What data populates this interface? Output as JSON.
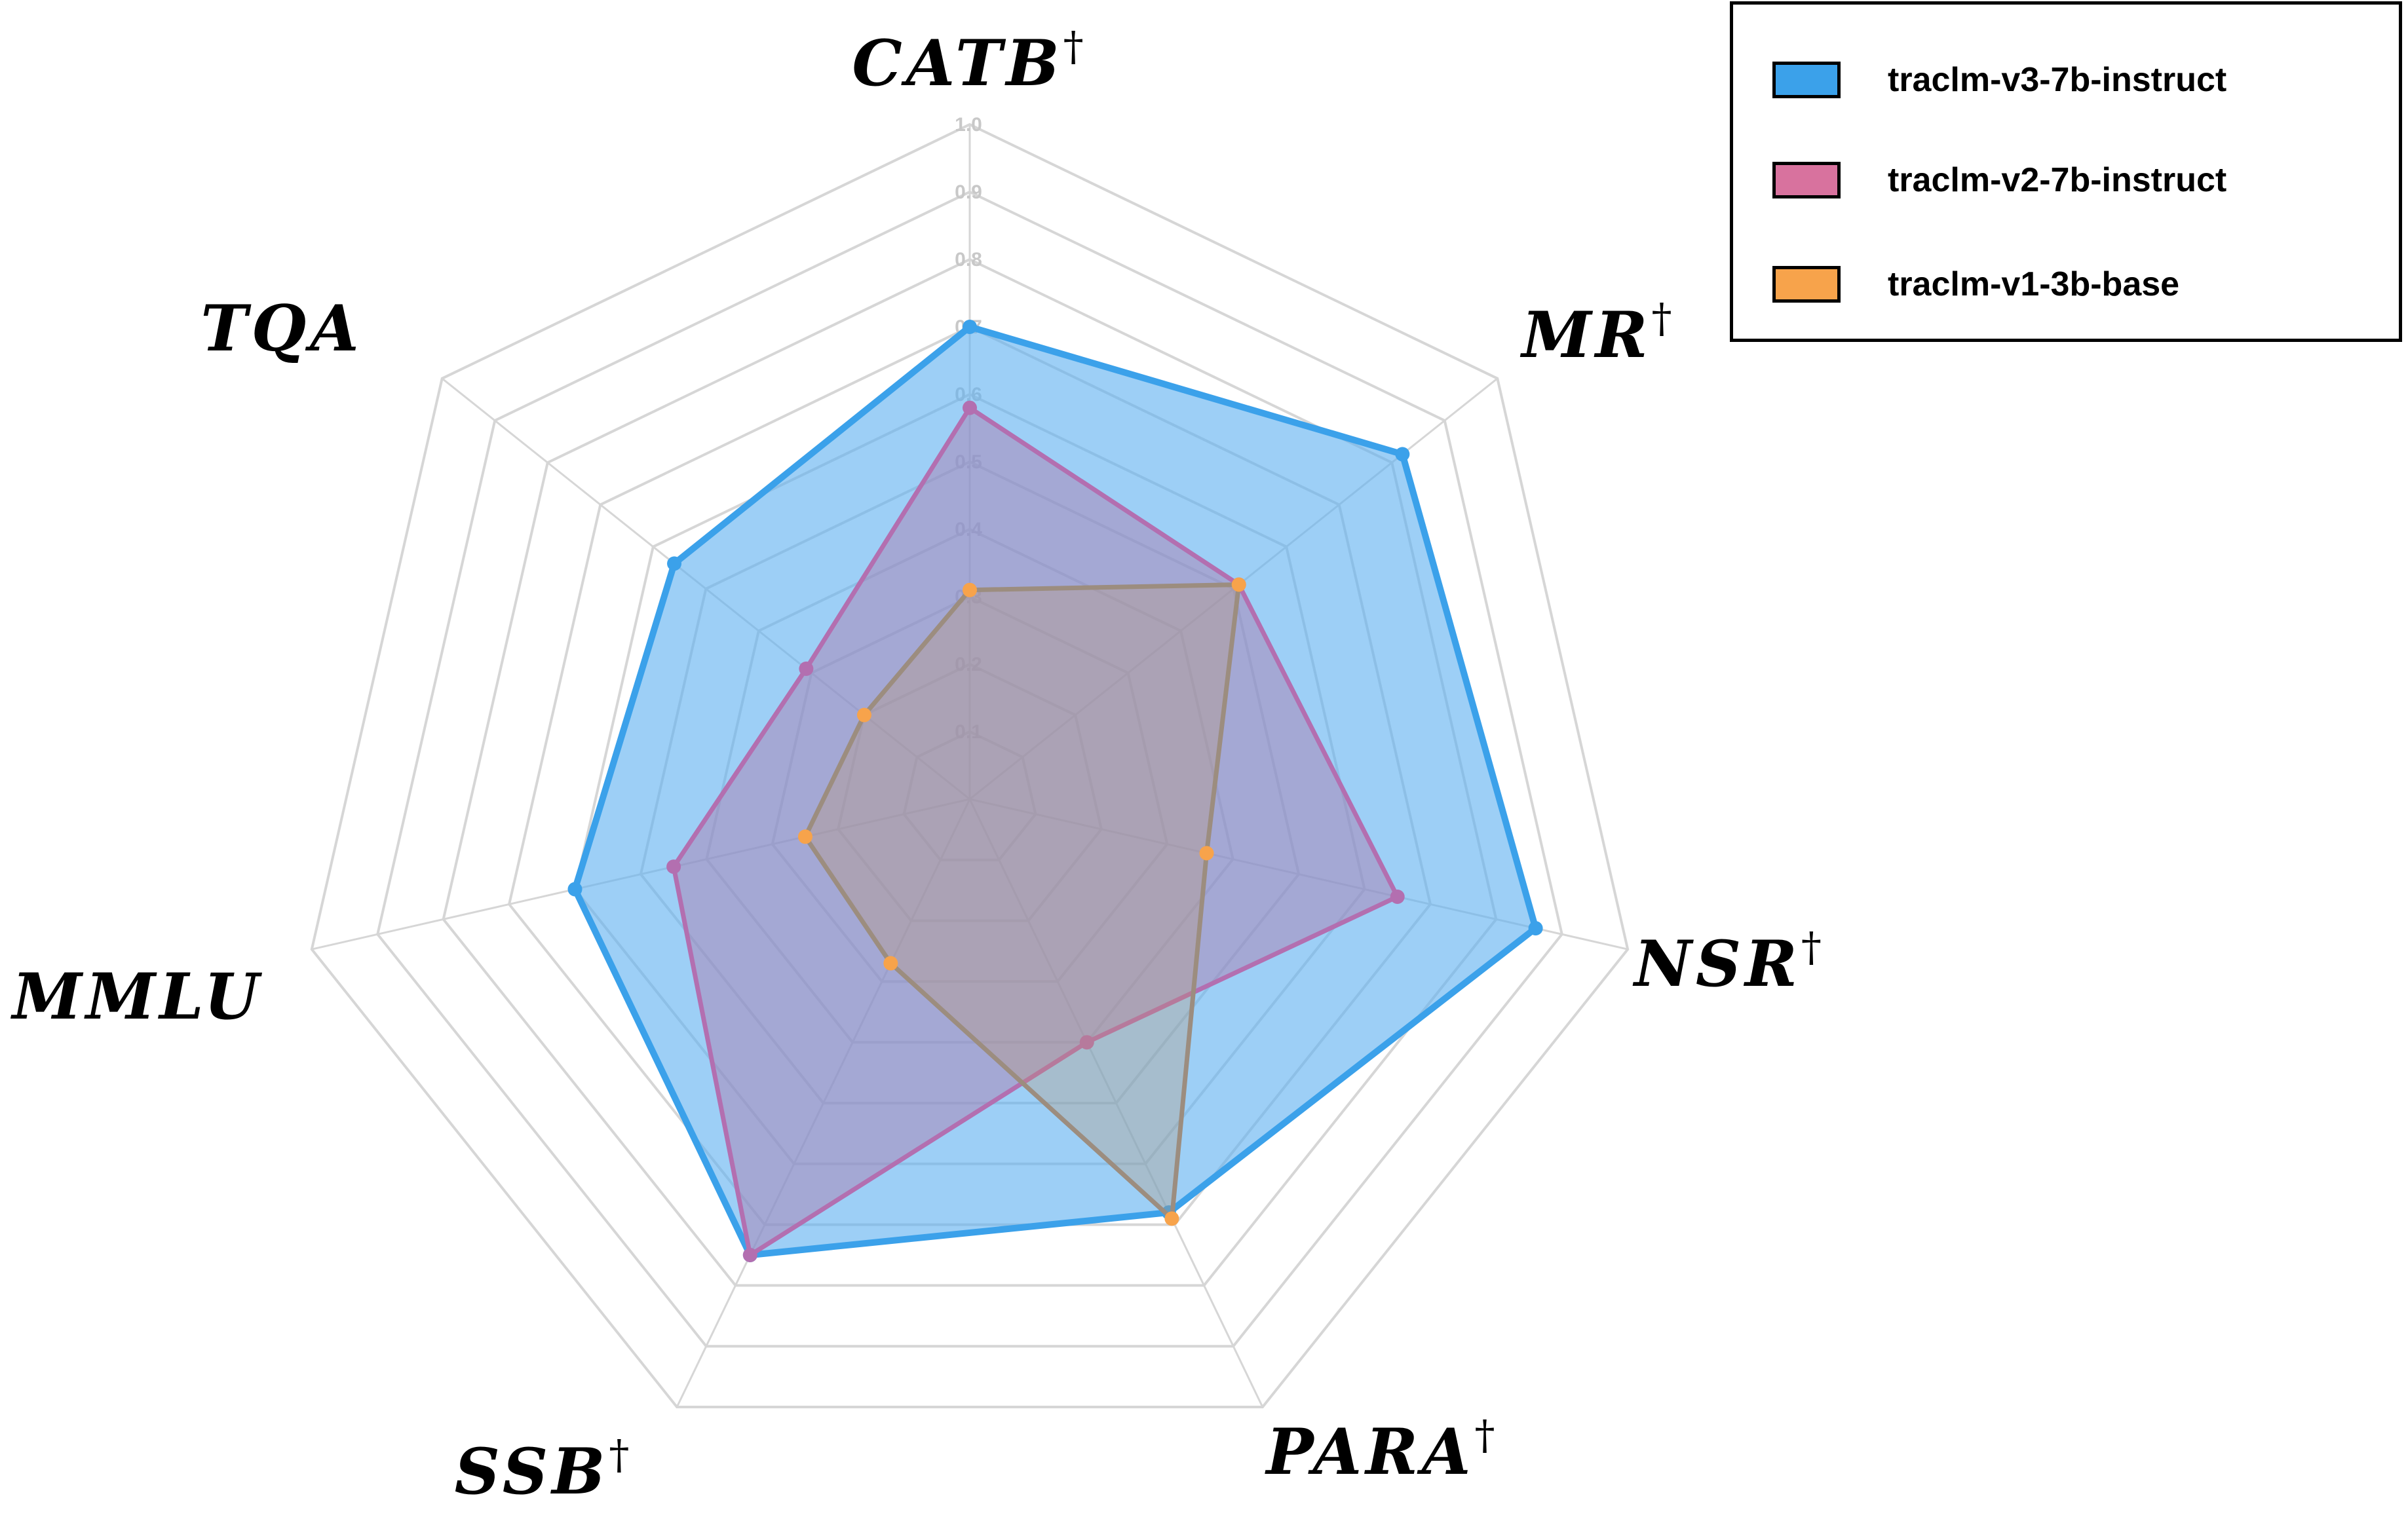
{
  "chart_data": {
    "type": "radar",
    "axes": [
      "CATB†",
      "MR†",
      "NSR†",
      "PARA†",
      "SSB†",
      "MMLU",
      "TQA"
    ],
    "axis_names": [
      "CATB",
      "MR",
      "NSR",
      "PARA",
      "SSB",
      "MMLU",
      "TQA"
    ],
    "axis_marks": [
      "†",
      "†",
      "†",
      "†",
      "†",
      "",
      ""
    ],
    "rlim": [
      0,
      1.0
    ],
    "ticks": [
      "0.1",
      "0.2",
      "0.3",
      "0.4",
      "0.5",
      "0.6",
      "0.7",
      "0.8",
      "0.9",
      "1.0"
    ],
    "grid": true,
    "legend_position": "top-right",
    "series": [
      {
        "name": "traclm-v3-7b-instruct",
        "values": [
          0.7,
          0.82,
          0.86,
          0.68,
          0.75,
          0.6,
          0.56
        ],
        "color": "#3ba1ea",
        "fill": "rgba(92, 175, 240, 0.60)",
        "swatch": "#3ba1ea"
      },
      {
        "name": "traclm-v2-7b-instruct",
        "values": [
          0.58,
          0.51,
          0.65,
          0.4,
          0.75,
          0.45,
          0.31
        ],
        "color": "#b36fb0",
        "fill": "rgba(172, 120, 170, 0.45)",
        "swatch": "#d8729e"
      },
      {
        "name": "traclm-v1-3b-base",
        "values": [
          0.31,
          0.51,
          0.36,
          0.69,
          0.27,
          0.25,
          0.2
        ],
        "color": "#9c8d7f",
        "fill": "rgba(190, 150, 110, 0.30)",
        "swatch": "#f7a34b",
        "marker_color": "#f7a34b"
      }
    ]
  }
}
